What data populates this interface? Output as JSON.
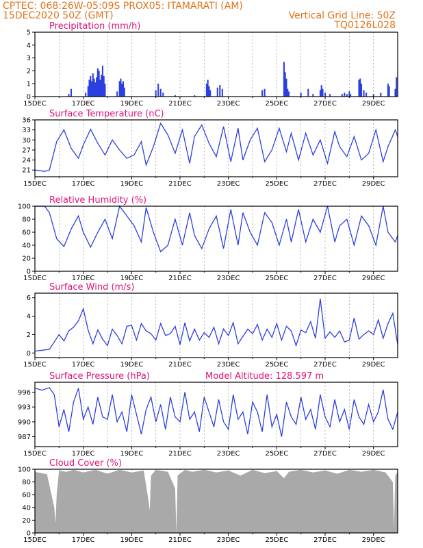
{
  "header": {
    "line1_left": "CPTEC:   068:26W-05:09S   PROX05: ITAMARATI (AM)",
    "line2_left": "15DEC2020 50Z (GMT)",
    "line2_right": "Vertical Grid Line: 50Z",
    "line3_right": "TQ0126L028"
  },
  "colors": {
    "header": "#e0741c",
    "panel_title": "#e0137a",
    "series_line": "#2b3fe0",
    "cloud_fill": "#a9a9a9",
    "grid": "#888888"
  },
  "chart_data": [
    {
      "id": "precip",
      "type": "bar",
      "title": "Precipitation (mm/h)",
      "ylim": [
        0,
        5
      ],
      "yticks": [
        0,
        1,
        2,
        3,
        4,
        5
      ],
      "ytick_labels": [
        "0",
        "1",
        "2",
        "3",
        "4",
        "5"
      ],
      "x_start": "15DEC",
      "xticks": [
        "15DEC",
        "17DEC",
        "19DEC",
        "21DEC",
        "23DEC",
        "25DEC",
        "27DEC",
        "29DEC"
      ],
      "x_day_range": [
        0,
        15
      ],
      "bars": [
        [
          1.4,
          0.2
        ],
        [
          1.5,
          0.6
        ],
        [
          2.1,
          0.3
        ],
        [
          2.2,
          0.8
        ],
        [
          2.25,
          1.3
        ],
        [
          2.3,
          1.6
        ],
        [
          2.35,
          1.2
        ],
        [
          2.4,
          1.8
        ],
        [
          2.45,
          1.4
        ],
        [
          2.5,
          1.1
        ],
        [
          2.55,
          1.5
        ],
        [
          2.6,
          2.2
        ],
        [
          2.65,
          2.0
        ],
        [
          2.7,
          1.3
        ],
        [
          2.75,
          1.7
        ],
        [
          2.8,
          2.4
        ],
        [
          2.85,
          1.6
        ],
        [
          2.9,
          1.0
        ],
        [
          3.4,
          0.4
        ],
        [
          3.5,
          1.2
        ],
        [
          3.55,
          1.4
        ],
        [
          3.6,
          1.0
        ],
        [
          3.65,
          1.2
        ],
        [
          3.7,
          0.7
        ],
        [
          5.0,
          0.5
        ],
        [
          5.1,
          1.0
        ],
        [
          5.2,
          0.6
        ],
        [
          5.3,
          0.3
        ],
        [
          5.8,
          0.1
        ],
        [
          6.6,
          0.1
        ],
        [
          7.1,
          1.0
        ],
        [
          7.15,
          1.3
        ],
        [
          7.2,
          0.8
        ],
        [
          7.25,
          0.5
        ],
        [
          7.55,
          0.7
        ],
        [
          7.65,
          0.9
        ],
        [
          7.75,
          0.6
        ],
        [
          9.4,
          0.5
        ],
        [
          9.5,
          0.6
        ],
        [
          10.3,
          2.7
        ],
        [
          10.35,
          1.9
        ],
        [
          10.4,
          1.4
        ],
        [
          10.45,
          0.6
        ],
        [
          10.5,
          0.4
        ],
        [
          11.0,
          0.3
        ],
        [
          11.3,
          0.6
        ],
        [
          11.5,
          0.2
        ],
        [
          11.8,
          0.5
        ],
        [
          11.85,
          0.9
        ],
        [
          11.9,
          0.6
        ],
        [
          12.0,
          0.3
        ],
        [
          12.2,
          0.2
        ],
        [
          12.7,
          0.2
        ],
        [
          12.8,
          0.3
        ],
        [
          12.9,
          0.2
        ],
        [
          13.0,
          0.4
        ],
        [
          13.05,
          0.2
        ],
        [
          13.4,
          1.3
        ],
        [
          13.45,
          1.4
        ],
        [
          13.5,
          1.0
        ],
        [
          13.6,
          0.5
        ],
        [
          13.7,
          0.3
        ],
        [
          14.0,
          0.2
        ],
        [
          14.3,
          0.3
        ],
        [
          14.6,
          1.0
        ],
        [
          14.65,
          0.8
        ],
        [
          14.9,
          0.6
        ],
        [
          14.95,
          1.5
        ]
      ]
    },
    {
      "id": "temp",
      "type": "line",
      "title": "Surface Temperature (nC)",
      "ylim": [
        19,
        36
      ],
      "yticks": [
        21,
        24,
        27,
        30,
        33,
        36
      ],
      "ytick_labels": [
        "21",
        "24",
        "27",
        "30",
        "33",
        "36"
      ],
      "x_start": "15DEC",
      "xticks": [
        "15DEC",
        "17DEC",
        "19DEC",
        "21DEC",
        "23DEC",
        "25DEC",
        "27DEC",
        "29DEC"
      ],
      "x_day_range": [
        0,
        15
      ],
      "x": [
        0,
        0.4,
        0.6,
        0.9,
        1.2,
        1.5,
        1.8,
        2.0,
        2.3,
        2.6,
        2.9,
        3.2,
        3.5,
        3.8,
        4.1,
        4.4,
        4.6,
        4.9,
        5.2,
        5.5,
        5.8,
        6.1,
        6.4,
        6.6,
        6.9,
        7.2,
        7.5,
        7.8,
        8.1,
        8.4,
        8.6,
        8.9,
        9.2,
        9.5,
        9.8,
        10.1,
        10.4,
        10.6,
        10.9,
        11.2,
        11.5,
        11.8,
        12.1,
        12.4,
        12.6,
        12.9,
        13.2,
        13.5,
        13.8,
        14.1,
        14.4,
        14.6,
        14.9,
        15.0
      ],
      "y": [
        21,
        20.6,
        21,
        29.5,
        33,
        27.5,
        24.5,
        28.5,
        33.2,
        29,
        25.5,
        30,
        27,
        24.5,
        25.5,
        29.5,
        22.5,
        28,
        35,
        31.5,
        26,
        33,
        23,
        31,
        34.5,
        29,
        25,
        34,
        23.5,
        33.5,
        24,
        30,
        33.5,
        23.5,
        27,
        33.5,
        26.5,
        32,
        24,
        32,
        25.5,
        30,
        23,
        32.5,
        28,
        25,
        31,
        24,
        26,
        33,
        23.5,
        28,
        33,
        31
      ]
    },
    {
      "id": "rh",
      "type": "line",
      "title": "Relative Humidity (%)",
      "ylim": [
        0,
        100
      ],
      "yticks": [
        0,
        20,
        40,
        60,
        80,
        100
      ],
      "ytick_labels": [
        "0",
        "20",
        "40",
        "60",
        "80",
        "100"
      ],
      "x_start": "15DEC",
      "xticks": [
        "15DEC",
        "17DEC",
        "19DEC",
        "21DEC",
        "23DEC",
        "25DEC",
        "27DEC",
        "29DEC"
      ],
      "x_day_range": [
        0,
        15
      ],
      "x": [
        0,
        0.4,
        0.6,
        0.9,
        1.2,
        1.5,
        1.8,
        2.0,
        2.3,
        2.6,
        2.9,
        3.2,
        3.5,
        3.8,
        4.1,
        4.4,
        4.6,
        4.9,
        5.2,
        5.5,
        5.8,
        6.1,
        6.4,
        6.6,
        6.9,
        7.2,
        7.5,
        7.8,
        8.1,
        8.4,
        8.6,
        8.9,
        9.2,
        9.5,
        9.8,
        10.1,
        10.4,
        10.6,
        10.9,
        11.2,
        11.5,
        11.8,
        12.1,
        12.4,
        12.6,
        12.9,
        13.2,
        13.5,
        13.8,
        14.1,
        14.4,
        14.6,
        14.9,
        15.0
      ],
      "y": [
        100,
        100,
        90,
        50,
        38,
        65,
        85,
        60,
        37,
        60,
        80,
        50,
        100,
        85,
        70,
        45,
        98,
        60,
        30,
        40,
        80,
        40,
        90,
        55,
        35,
        65,
        85,
        35,
        95,
        40,
        90,
        60,
        40,
        90,
        75,
        40,
        80,
        45,
        95,
        45,
        80,
        60,
        100,
        45,
        70,
        80,
        40,
        85,
        70,
        40,
        100,
        60,
        45,
        55
      ]
    },
    {
      "id": "wind",
      "type": "line",
      "title": "Surface Wind (m/s)",
      "ylim": [
        -0.5,
        6.5
      ],
      "yticks": [
        0,
        2,
        4,
        6
      ],
      "ytick_labels": [
        "0",
        "2",
        "4",
        "6"
      ],
      "x_start": "15DEC",
      "xticks": [
        "15DEC",
        "17DEC",
        "19DEC",
        "21DEC",
        "23DEC",
        "25DEC",
        "27DEC",
        "29DEC"
      ],
      "x_day_range": [
        0,
        15
      ],
      "x": [
        0,
        0.3,
        0.6,
        0.8,
        1.0,
        1.2,
        1.4,
        1.6,
        1.8,
        2.0,
        2.2,
        2.4,
        2.6,
        2.8,
        3.0,
        3.2,
        3.4,
        3.6,
        3.8,
        4.0,
        4.2,
        4.4,
        4.6,
        4.8,
        5.0,
        5.2,
        5.4,
        5.6,
        5.8,
        6.0,
        6.2,
        6.4,
        6.6,
        6.8,
        7.0,
        7.2,
        7.4,
        7.6,
        7.8,
        8.0,
        8.2,
        8.4,
        8.6,
        8.8,
        9.0,
        9.2,
        9.4,
        9.6,
        9.8,
        10.0,
        10.2,
        10.4,
        10.6,
        10.8,
        11.0,
        11.2,
        11.4,
        11.6,
        11.8,
        12.0,
        12.2,
        12.4,
        12.6,
        12.8,
        13.0,
        13.2,
        13.4,
        13.6,
        13.8,
        14.0,
        14.2,
        14.4,
        14.6,
        14.8,
        15.0
      ],
      "y": [
        0.2,
        0.3,
        0.4,
        1.2,
        2.0,
        1.3,
        2.4,
        2.8,
        3.5,
        4.8,
        2.5,
        1.0,
        2.5,
        1.5,
        0.8,
        2.6,
        1.9,
        1.0,
        2.9,
        3.0,
        1.4,
        3.2,
        2.4,
        2.1,
        1.4,
        3.2,
        1.9,
        2.1,
        2.9,
        0.9,
        3.3,
        1.3,
        2.6,
        1.4,
        2.2,
        1.7,
        2.8,
        1.0,
        2.6,
        1.9,
        3.3,
        1.0,
        1.8,
        2.6,
        2.1,
        3.1,
        1.4,
        2.6,
        1.7,
        3.2,
        1.4,
        2.9,
        2.4,
        0.8,
        2.5,
        2.2,
        3.4,
        1.6,
        5.9,
        1.6,
        2.3,
        1.7,
        2.4,
        1.2,
        1.4,
        3.8,
        1.5,
        2.0,
        2.4,
        2.0,
        3.6,
        1.6,
        3.2,
        4.3,
        0.9
      ]
    },
    {
      "id": "pressure",
      "type": "line",
      "title": "Surface Pressure (hPa)",
      "annotation": "Model Altitude: 128.597 m",
      "ylim": [
        985,
        998
      ],
      "yticks": [
        987,
        990,
        993,
        996
      ],
      "ytick_labels": [
        "987",
        "990",
        "993",
        "996"
      ],
      "x_start": "15DEC",
      "xticks": [
        "15DEC",
        "17DEC",
        "19DEC",
        "21DEC",
        "23DEC",
        "25DEC",
        "27DEC",
        "29DEC"
      ],
      "x_day_range": [
        0,
        15
      ],
      "x": [
        0,
        0.3,
        0.6,
        0.8,
        1.0,
        1.2,
        1.4,
        1.6,
        1.8,
        2.0,
        2.2,
        2.4,
        2.6,
        2.8,
        3.0,
        3.2,
        3.4,
        3.6,
        3.8,
        4.0,
        4.2,
        4.4,
        4.6,
        4.8,
        5.0,
        5.2,
        5.4,
        5.6,
        5.8,
        6.0,
        6.2,
        6.4,
        6.6,
        6.8,
        7.0,
        7.2,
        7.4,
        7.6,
        7.8,
        8.0,
        8.2,
        8.4,
        8.6,
        8.8,
        9.0,
        9.2,
        9.4,
        9.6,
        9.8,
        10.0,
        10.2,
        10.4,
        10.6,
        10.8,
        11.0,
        11.2,
        11.4,
        11.6,
        11.8,
        12.0,
        12.2,
        12.4,
        12.6,
        12.8,
        13.0,
        13.2,
        13.4,
        13.6,
        13.8,
        14.0,
        14.2,
        14.4,
        14.6,
        14.8,
        15.0
      ],
      "y": [
        996.8,
        996.4,
        996.9,
        995.5,
        989.0,
        992.5,
        988.0,
        994.0,
        996.8,
        990.5,
        993.0,
        989.5,
        995.0,
        991.0,
        990.5,
        995.5,
        990.0,
        992.0,
        988.0,
        995.5,
        991.5,
        987.5,
        992.5,
        995.0,
        990.0,
        993.5,
        988.5,
        995.0,
        991.0,
        990.0,
        996.0,
        990.5,
        992.0,
        988.0,
        995.0,
        992.0,
        989.0,
        994.5,
        990.0,
        988.5,
        995.5,
        990.5,
        992.0,
        987.5,
        994.0,
        992.0,
        988.0,
        995.5,
        989.0,
        991.5,
        987.0,
        994.0,
        991.0,
        989.5,
        995.0,
        990.5,
        992.5,
        988.5,
        995.5,
        991.0,
        989.0,
        994.5,
        990.0,
        992.5,
        988.5,
        994.5,
        991.0,
        989.5,
        993.5,
        990.0,
        992.0,
        996.5,
        990.5,
        988.5,
        992.0
      ]
    },
    {
      "id": "cloud",
      "type": "area",
      "title": "Cloud Cover (%)",
      "ylim": [
        0,
        100
      ],
      "yticks": [
        0,
        20,
        40,
        60,
        80,
        100
      ],
      "ytick_labels": [
        "0",
        "20",
        "40",
        "60",
        "80",
        "100"
      ],
      "x_start": "15DEC",
      "xticks": [
        "15DEC",
        "17DEC",
        "19DEC",
        "21DEC",
        "23DEC",
        "25DEC",
        "27DEC",
        "29DEC"
      ],
      "x_day_range": [
        0,
        15
      ],
      "x": [
        0,
        0.5,
        0.8,
        0.85,
        0.9,
        1.0,
        1.3,
        1.6,
        2.0,
        2.5,
        3.0,
        3.5,
        4.0,
        4.5,
        4.7,
        4.75,
        4.8,
        5.0,
        5.5,
        5.8,
        5.85,
        5.9,
        6.2,
        6.5,
        7.0,
        7.5,
        8.0,
        8.5,
        9.0,
        9.5,
        10.0,
        10.3,
        10.5,
        11.0,
        11.5,
        12.0,
        12.5,
        13.0,
        13.5,
        14.0,
        14.5,
        14.8,
        14.85,
        14.9,
        15.0
      ],
      "y": [
        96,
        92,
        40,
        15,
        60,
        98,
        96,
        99,
        95,
        99,
        93,
        99,
        95,
        98,
        50,
        35,
        90,
        99,
        96,
        70,
        0,
        90,
        99,
        96,
        99,
        95,
        98,
        90,
        99,
        94,
        97,
        86,
        96,
        99,
        95,
        98,
        93,
        99,
        96,
        99,
        95,
        80,
        8,
        90,
        96
      ]
    }
  ]
}
